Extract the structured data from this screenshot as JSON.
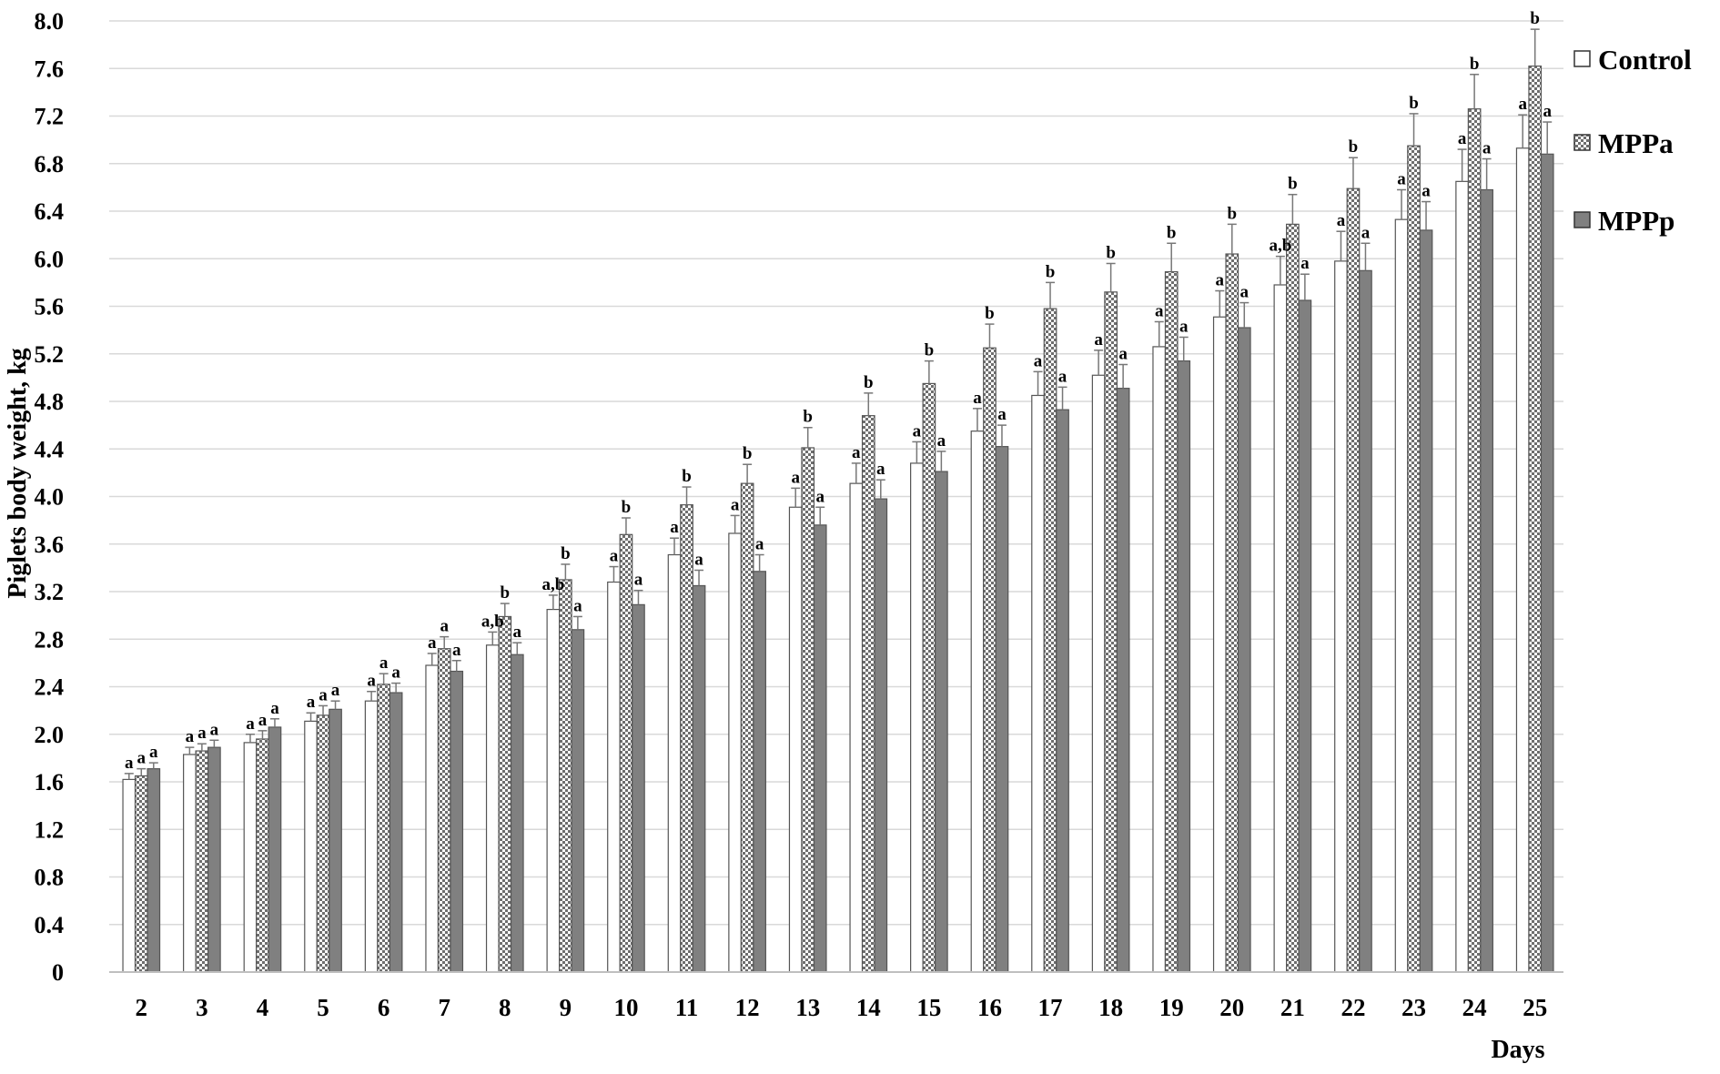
{
  "chart_data": {
    "type": "bar",
    "ylabel": "Piglets body weight, kg",
    "xlabel": "Days",
    "ylim": [
      0,
      8.0
    ],
    "y_ticks": [
      "0",
      "0.4",
      "0.8",
      "1.2",
      "1.6",
      "2.0",
      "2.4",
      "2.8",
      "3.2",
      "3.6",
      "4.0",
      "4.4",
      "4.8",
      "5.2",
      "5.6",
      "6.0",
      "6.4",
      "6.8",
      "7.2",
      "7.6",
      "8.0"
    ],
    "grid": "horizontal",
    "legend_position": "right",
    "categories": [
      "2",
      "3",
      "4",
      "5",
      "6",
      "7",
      "8",
      "9",
      "10",
      "11",
      "12",
      "13",
      "14",
      "15",
      "16",
      "17",
      "18",
      "19",
      "20",
      "21",
      "22",
      "23",
      "24",
      "25"
    ],
    "series": [
      {
        "name": "Control",
        "pattern": "open",
        "fill": "#ffffff",
        "values": [
          1.62,
          1.83,
          1.93,
          2.11,
          2.28,
          2.58,
          2.75,
          3.05,
          3.28,
          3.51,
          3.69,
          3.91,
          4.11,
          4.28,
          4.55,
          4.85,
          5.02,
          5.26,
          5.51,
          5.78,
          5.98,
          6.33,
          6.65,
          6.93
        ],
        "errors": [
          0.05,
          0.06,
          0.07,
          0.07,
          0.08,
          0.1,
          0.11,
          0.12,
          0.13,
          0.14,
          0.15,
          0.16,
          0.17,
          0.18,
          0.19,
          0.2,
          0.21,
          0.21,
          0.22,
          0.24,
          0.25,
          0.25,
          0.27,
          0.28
        ],
        "labels": [
          "a",
          "a",
          "a",
          "a",
          "a",
          "a",
          "a,b",
          "a,b",
          "a",
          "a",
          "a",
          "a",
          "a",
          "a",
          "a",
          "a",
          "a",
          "a",
          "a",
          "a,b",
          "a",
          "a",
          "a",
          "a"
        ]
      },
      {
        "name": "MPPa",
        "pattern": "checkered",
        "fill": "#9a9a9a",
        "values": [
          1.65,
          1.86,
          1.96,
          2.16,
          2.42,
          2.72,
          2.99,
          3.3,
          3.68,
          3.93,
          4.11,
          4.41,
          4.68,
          4.95,
          5.25,
          5.58,
          5.72,
          5.89,
          6.04,
          6.29,
          6.59,
          6.95,
          7.26,
          7.62
        ],
        "errors": [
          0.06,
          0.06,
          0.07,
          0.08,
          0.09,
          0.1,
          0.11,
          0.13,
          0.14,
          0.15,
          0.16,
          0.17,
          0.19,
          0.19,
          0.2,
          0.22,
          0.24,
          0.24,
          0.25,
          0.25,
          0.26,
          0.27,
          0.29,
          0.31
        ],
        "labels": [
          "a",
          "a",
          "a",
          "a",
          "a",
          "a",
          "b",
          "b",
          "b",
          "b",
          "b",
          "b",
          "b",
          "b",
          "b",
          "b",
          "b",
          "b",
          "b",
          "b",
          "b",
          "b",
          "b",
          "b"
        ]
      },
      {
        "name": "MPPp",
        "pattern": "solid",
        "fill": "#808080",
        "values": [
          1.71,
          1.89,
          2.06,
          2.21,
          2.35,
          2.53,
          2.67,
          2.88,
          3.09,
          3.25,
          3.37,
          3.76,
          3.98,
          4.21,
          4.42,
          4.73,
          4.91,
          5.14,
          5.42,
          5.65,
          5.9,
          6.24,
          6.58,
          6.88
        ],
        "errors": [
          0.05,
          0.06,
          0.07,
          0.07,
          0.08,
          0.09,
          0.1,
          0.11,
          0.12,
          0.13,
          0.14,
          0.15,
          0.16,
          0.17,
          0.18,
          0.19,
          0.2,
          0.2,
          0.21,
          0.22,
          0.23,
          0.24,
          0.26,
          0.27
        ],
        "labels": [
          "a",
          "a",
          "a",
          "a",
          "a",
          "a",
          "a",
          "a",
          "a",
          "a",
          "a",
          "a",
          "a",
          "a",
          "a",
          "a",
          "a",
          "a",
          "a",
          "a",
          "a",
          "a",
          "a",
          "a"
        ]
      }
    ]
  }
}
